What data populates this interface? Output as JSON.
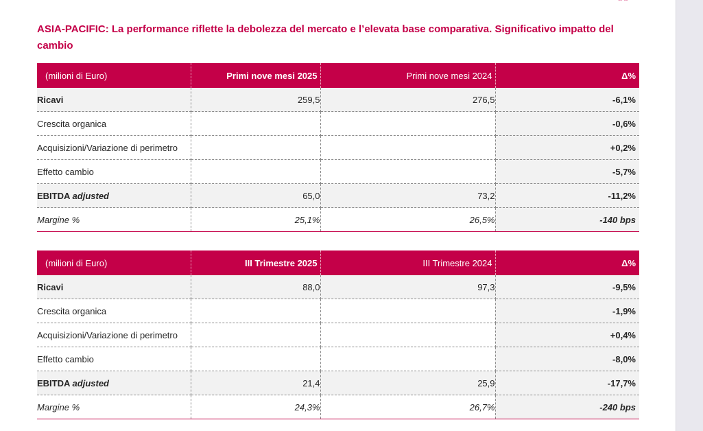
{
  "title": "ASIA-PACIFIC: La performance riflette la debolezza del mercato e l’elevata base comparativa. Significativo impatto del cambio",
  "tables": [
    {
      "headers": [
        "(milioni di Euro)",
        "Primi nove mesi 2025",
        "Primi nove mesi 2024",
        "Δ%"
      ],
      "rows": [
        {
          "label": "Ricavi",
          "label_em": "",
          "v1": "259,5",
          "v2": "276,5",
          "delta": "-6,1%"
        },
        {
          "label": "Crescita organica",
          "label_em": "",
          "v1": "",
          "v2": "",
          "delta": "-0,6%"
        },
        {
          "label": "Acquisizioni/Variazione di perimetro",
          "label_em": "",
          "v1": "",
          "v2": "",
          "delta": "+0,2%"
        },
        {
          "label": "Effetto cambio",
          "label_em": "",
          "v1": "",
          "v2": "",
          "delta": "-5,7%"
        },
        {
          "label": "EBITDA ",
          "label_em": "adjusted",
          "v1": "65,0",
          "v2": "73,2",
          "delta": "-11,2%"
        },
        {
          "label": "Margine %",
          "label_em": "",
          "v1": "25,1%",
          "v2": "26,5%",
          "delta": "-140 bps"
        }
      ]
    },
    {
      "headers": [
        "(milioni di Euro)",
        "III Trimestre 2025",
        "III Trimestre 2024",
        "Δ%"
      ],
      "rows": [
        {
          "label": "Ricavi",
          "label_em": "",
          "v1": "88,0",
          "v2": "97,3",
          "delta": "-9,5%"
        },
        {
          "label": "Crescita organica",
          "label_em": "",
          "v1": "",
          "v2": "",
          "delta": "-1,9%"
        },
        {
          "label": "Acquisizioni/Variazione di perimetro",
          "label_em": "",
          "v1": "",
          "v2": "",
          "delta": "+0,4%"
        },
        {
          "label": "Effetto cambio",
          "label_em": "",
          "v1": "",
          "v2": "",
          "delta": "-8,0%"
        },
        {
          "label": "EBITDA ",
          "label_em": "adjusted",
          "v1": "21,4",
          "v2": "25,9",
          "delta": "-17,7%"
        },
        {
          "label": "Margine %",
          "label_em": "",
          "v1": "24,3%",
          "v2": "26,7%",
          "delta": "-240 bps"
        }
      ]
    }
  ],
  "colors": {
    "accent": "#c40048",
    "row_shade": "#f2f2f2",
    "page_bg": "#ffffff",
    "side_bg": "#e9e8ee"
  }
}
